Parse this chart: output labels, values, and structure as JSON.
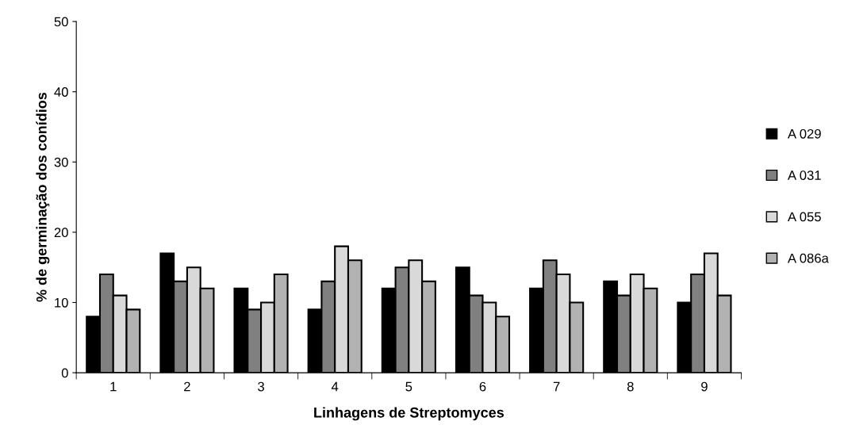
{
  "chart_data": {
    "type": "bar",
    "xlabel": "Linhagens de Streptomyces",
    "ylabel": "% de germinação dos conídios",
    "categories": [
      "1",
      "2",
      "3",
      "4",
      "5",
      "6",
      "7",
      "8",
      "9"
    ],
    "series": [
      {
        "name": "A 029",
        "color": "#000000",
        "values": [
          8,
          17,
          12,
          9,
          12,
          15,
          12,
          13,
          10
        ]
      },
      {
        "name": "A 031",
        "color": "#808080",
        "values": [
          14,
          13,
          9,
          13,
          15,
          11,
          16,
          11,
          14
        ]
      },
      {
        "name": "A 055",
        "color": "#d9d9d9",
        "values": [
          11,
          15,
          10,
          18,
          16,
          10,
          14,
          14,
          17
        ]
      },
      {
        "name": "A 086a",
        "color": "#b2b2b2",
        "values": [
          9,
          12,
          14,
          16,
          13,
          8,
          10,
          12,
          11
        ]
      }
    ],
    "ylim": [
      0,
      50
    ],
    "yticks": [
      0,
      10,
      20,
      30,
      40,
      50
    ],
    "grid": false,
    "legend": "right"
  }
}
